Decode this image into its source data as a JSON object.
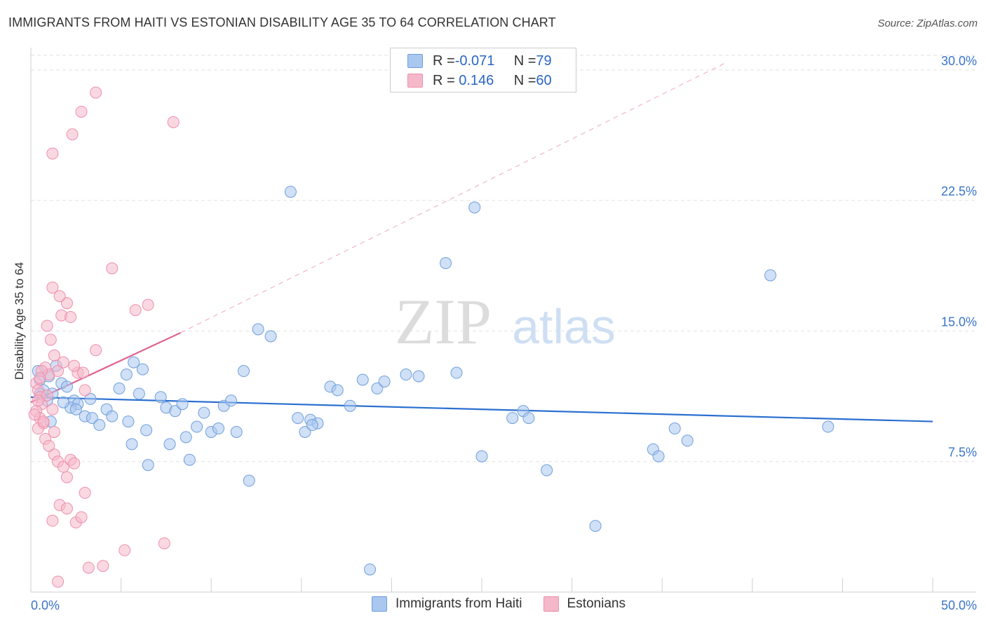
{
  "title": "IMMIGRANTS FROM HAITI VS ESTONIAN DISABILITY AGE 35 TO 64 CORRELATION CHART",
  "source": "Source: ZipAtlas.com",
  "watermark": {
    "zip": "ZIP",
    "atlas": "atlas"
  },
  "legend": {
    "rows": [
      {
        "r_label": "R = ",
        "r_value": "-0.071",
        "n_label": "N = ",
        "n_value": "79",
        "color": "#a9c7ef"
      },
      {
        "r_label": "R = ",
        "r_value": " 0.146",
        "n_label": "N = ",
        "n_value": "60",
        "color": "#f5b8cb"
      }
    ]
  },
  "chart_data": {
    "type": "scatter",
    "title": "IMMIGRANTS FROM HAITI VS ESTONIAN DISABILITY AGE 35 TO 64 CORRELATION CHART",
    "xlabel": "",
    "ylabel": "Disability Age 35 to 64",
    "xlim": [
      0,
      50
    ],
    "ylim": [
      0,
      31
    ],
    "x_tick_labels": [
      "0.0%",
      "50.0%"
    ],
    "y_ticks": [
      7.5,
      15.0,
      22.5,
      30.0
    ],
    "y_tick_labels": [
      "7.5%",
      "15.0%",
      "22.5%",
      "30.0%"
    ],
    "grid": true,
    "series": [
      {
        "name": "Immigrants from Haiti",
        "color": "#a9c7ef",
        "stroke": "#6f9fdc",
        "line_color": "#2a6fd0",
        "trend": {
          "x": [
            0,
            50
          ],
          "y": [
            11.2,
            9.8
          ]
        },
        "points": [
          [
            0.4,
            12.7
          ],
          [
            0.5,
            12.2
          ],
          [
            0.7,
            11.6
          ],
          [
            0.9,
            11.0
          ],
          [
            0.5,
            11.4
          ],
          [
            1.0,
            12.4
          ],
          [
            1.4,
            13.0
          ],
          [
            1.7,
            12.0
          ],
          [
            1.2,
            11.4
          ],
          [
            2.0,
            11.8
          ],
          [
            2.4,
            11.0
          ],
          [
            2.6,
            10.8
          ],
          [
            2.2,
            10.6
          ],
          [
            3.0,
            10.1
          ],
          [
            3.4,
            10.0
          ],
          [
            3.8,
            9.6
          ],
          [
            4.2,
            10.5
          ],
          [
            4.5,
            10.1
          ],
          [
            3.3,
            11.1
          ],
          [
            1.8,
            10.9
          ],
          [
            2.5,
            10.5
          ],
          [
            1.1,
            9.8
          ],
          [
            4.9,
            11.7
          ],
          [
            5.3,
            12.5
          ],
          [
            5.7,
            13.2
          ],
          [
            6.2,
            12.8
          ],
          [
            6.0,
            11.4
          ],
          [
            6.4,
            9.3
          ],
          [
            5.6,
            8.5
          ],
          [
            7.2,
            11.2
          ],
          [
            7.5,
            10.6
          ],
          [
            8.0,
            10.4
          ],
          [
            8.4,
            10.8
          ],
          [
            7.7,
            8.5
          ],
          [
            8.6,
            8.9
          ],
          [
            8.8,
            7.6
          ],
          [
            9.2,
            9.5
          ],
          [
            9.6,
            10.3
          ],
          [
            10.0,
            9.2
          ],
          [
            10.4,
            9.4
          ],
          [
            10.7,
            10.7
          ],
          [
            11.1,
            11.0
          ],
          [
            11.4,
            9.2
          ],
          [
            11.8,
            12.7
          ],
          [
            12.1,
            6.4
          ],
          [
            12.6,
            15.1
          ],
          [
            13.3,
            14.7
          ],
          [
            14.4,
            23.0
          ],
          [
            14.8,
            10.0
          ],
          [
            15.2,
            9.2
          ],
          [
            15.5,
            9.9
          ],
          [
            15.9,
            9.7
          ],
          [
            16.6,
            11.8
          ],
          [
            17.0,
            11.6
          ],
          [
            17.7,
            10.7
          ],
          [
            18.4,
            12.2
          ],
          [
            18.8,
            1.3
          ],
          [
            19.2,
            11.7
          ],
          [
            19.6,
            12.1
          ],
          [
            20.8,
            12.5
          ],
          [
            21.5,
            12.4
          ],
          [
            23.0,
            18.9
          ],
          [
            23.6,
            12.6
          ],
          [
            24.6,
            22.1
          ],
          [
            25.0,
            7.8
          ],
          [
            26.7,
            10.0
          ],
          [
            27.3,
            10.4
          ],
          [
            27.6,
            10.0
          ],
          [
            28.6,
            7.0
          ],
          [
            31.3,
            3.8
          ],
          [
            34.5,
            8.2
          ],
          [
            34.8,
            7.8
          ],
          [
            35.7,
            9.4
          ],
          [
            36.4,
            8.7
          ],
          [
            41.0,
            18.2
          ],
          [
            44.2,
            9.5
          ],
          [
            5.4,
            9.8
          ],
          [
            6.5,
            7.3
          ],
          [
            15.6,
            9.6
          ]
        ]
      },
      {
        "name": "Estonians",
        "color": "#f5b8cb",
        "stroke": "#ee8fac",
        "line_color": "#e0628e",
        "trend": {
          "x": [
            0,
            8.3
          ],
          "y": [
            10.9,
            14.9
          ]
        },
        "trend_extension": {
          "x": [
            8.3,
            38.5
          ],
          "y": [
            14.9,
            30.4
          ]
        },
        "points": [
          [
            0.3,
            12.0
          ],
          [
            0.4,
            11.6
          ],
          [
            0.5,
            11.2
          ],
          [
            0.6,
            10.8
          ],
          [
            0.3,
            10.4
          ],
          [
            0.5,
            10.0
          ],
          [
            0.7,
            9.7
          ],
          [
            0.4,
            9.4
          ],
          [
            0.8,
            12.9
          ],
          [
            1.0,
            12.5
          ],
          [
            0.6,
            12.7
          ],
          [
            0.9,
            11.3
          ],
          [
            0.4,
            11.0
          ],
          [
            1.2,
            10.5
          ],
          [
            0.7,
            9.8
          ],
          [
            1.3,
            9.2
          ],
          [
            0.8,
            8.8
          ],
          [
            1.0,
            8.4
          ],
          [
            1.3,
            7.9
          ],
          [
            1.5,
            7.5
          ],
          [
            1.8,
            7.2
          ],
          [
            2.0,
            6.6
          ],
          [
            2.2,
            7.6
          ],
          [
            2.4,
            7.4
          ],
          [
            1.6,
            5.0
          ],
          [
            2.0,
            4.8
          ],
          [
            2.5,
            4.0
          ],
          [
            2.8,
            4.3
          ],
          [
            1.2,
            4.1
          ],
          [
            1.5,
            0.6
          ],
          [
            3.0,
            5.7
          ],
          [
            3.2,
            1.4
          ],
          [
            4.0,
            1.5
          ],
          [
            5.2,
            2.4
          ],
          [
            7.4,
            2.8
          ],
          [
            0.9,
            15.3
          ],
          [
            1.1,
            14.5
          ],
          [
            1.3,
            13.6
          ],
          [
            1.5,
            12.7
          ],
          [
            1.7,
            15.9
          ],
          [
            2.0,
            16.6
          ],
          [
            1.6,
            17.0
          ],
          [
            1.2,
            17.5
          ],
          [
            2.2,
            15.8
          ],
          [
            2.6,
            12.6
          ],
          [
            3.0,
            11.6
          ],
          [
            3.6,
            13.9
          ],
          [
            4.5,
            18.6
          ],
          [
            5.8,
            16.2
          ],
          [
            6.5,
            16.5
          ],
          [
            2.3,
            26.3
          ],
          [
            2.8,
            27.6
          ],
          [
            3.6,
            28.7
          ],
          [
            1.2,
            25.2
          ],
          [
            7.9,
            27.0
          ],
          [
            0.5,
            12.3
          ],
          [
            0.2,
            10.2
          ],
          [
            1.8,
            13.2
          ],
          [
            2.4,
            13.0
          ],
          [
            2.9,
            12.6
          ]
        ]
      }
    ]
  },
  "bottom_legend": [
    "Immigrants from Haiti",
    "Estonians"
  ]
}
